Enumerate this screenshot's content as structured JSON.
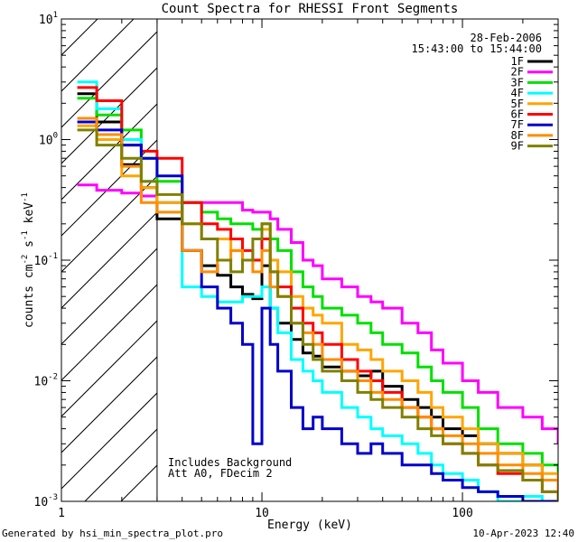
{
  "chart_data": {
    "type": "line",
    "title": "Count Spectra for RHESSI Front Segments",
    "xlabel": "Energy (keV)",
    "ylabel": "counts cm-2 s-1 keV-1",
    "xscale": "log",
    "yscale": "log",
    "xlim": [
      1,
      300
    ],
    "ylim": [
      0.001,
      10
    ],
    "x_ticks": [
      {
        "value": 1,
        "label": "1"
      },
      {
        "value": 10,
        "label": "10"
      },
      {
        "value": 100,
        "label": "100"
      }
    ],
    "y_ticks": [
      {
        "value": 0.001,
        "base": "10",
        "exp": "-3"
      },
      {
        "value": 0.01,
        "base": "10",
        "exp": "-2"
      },
      {
        "value": 0.1,
        "base": "10",
        "exp": "-1"
      },
      {
        "value": 1,
        "base": "10",
        "exp": "0"
      },
      {
        "value": 10,
        "base": "10",
        "exp": "1"
      }
    ],
    "shaded_region": {
      "from": 1,
      "to": 3
    },
    "date": "28-Feb-2006",
    "time_range": "15:43:00 to 15:44:00",
    "annotations": [
      "Includes Background",
      "Att A0, FDecim 2"
    ],
    "series": [
      {
        "name": "1F",
        "color": "#000000",
        "x": [
          1.2,
          1.5,
          2,
          2.5,
          3,
          4,
          5,
          6,
          7,
          8,
          9,
          10,
          11,
          12,
          14,
          16,
          18,
          20,
          25,
          30,
          35,
          40,
          50,
          60,
          70,
          80,
          100,
          120,
          150,
          200,
          250,
          300
        ],
        "y": [
          2.4,
          1.4,
          0.62,
          0.4,
          0.22,
          0.12,
          0.09,
          0.075,
          0.06,
          0.052,
          0.048,
          0.09,
          0.04,
          0.03,
          0.022,
          0.017,
          0.016,
          0.013,
          0.012,
          0.011,
          0.012,
          0.009,
          0.007,
          0.006,
          0.005,
          0.004,
          0.0035,
          0.003,
          0.0025,
          0.002,
          0.0015,
          0.0012
        ]
      },
      {
        "name": "2F",
        "color": "#ff00ff",
        "x": [
          1.2,
          1.5,
          2,
          2.5,
          3,
          4,
          5,
          6,
          7,
          8,
          9,
          10,
          11,
          12,
          14,
          16,
          18,
          20,
          25,
          30,
          35,
          40,
          50,
          60,
          70,
          80,
          100,
          120,
          150,
          200,
          250,
          300
        ],
        "y": [
          0.42,
          0.38,
          0.36,
          0.34,
          0.3,
          0.3,
          0.3,
          0.3,
          0.3,
          0.26,
          0.25,
          0.25,
          0.22,
          0.18,
          0.14,
          0.1,
          0.09,
          0.07,
          0.06,
          0.05,
          0.045,
          0.04,
          0.03,
          0.025,
          0.018,
          0.014,
          0.01,
          0.008,
          0.006,
          0.005,
          0.004,
          0.003
        ]
      },
      {
        "name": "3F",
        "color": "#00e000",
        "x": [
          1.2,
          1.5,
          2,
          2.5,
          3,
          4,
          5,
          6,
          7,
          8,
          9,
          10,
          11,
          12,
          14,
          16,
          18,
          20,
          25,
          30,
          35,
          40,
          50,
          60,
          70,
          80,
          100,
          120,
          150,
          200,
          250,
          300
        ],
        "y": [
          2.2,
          1.6,
          1.2,
          0.7,
          0.45,
          0.3,
          0.25,
          0.22,
          0.2,
          0.2,
          0.18,
          0.2,
          0.15,
          0.12,
          0.08,
          0.06,
          0.05,
          0.04,
          0.035,
          0.03,
          0.025,
          0.02,
          0.017,
          0.013,
          0.01,
          0.008,
          0.006,
          0.004,
          0.003,
          0.0025,
          0.002,
          0.0015
        ]
      },
      {
        "name": "4F",
        "color": "#00ffff",
        "x": [
          1.2,
          1.5,
          2,
          2.5,
          3,
          4,
          5,
          6,
          7,
          8,
          9,
          10,
          11,
          12,
          14,
          16,
          18,
          20,
          25,
          30,
          35,
          40,
          50,
          60,
          70,
          80,
          100,
          120,
          150,
          200,
          250,
          300
        ],
        "y": [
          3.0,
          1.8,
          1.0,
          0.45,
          0.3,
          0.06,
          0.05,
          0.045,
          0.045,
          0.05,
          0.05,
          0.06,
          0.04,
          0.025,
          0.015,
          0.012,
          0.01,
          0.008,
          0.006,
          0.005,
          0.004,
          0.0035,
          0.003,
          0.0025,
          0.002,
          0.0017,
          0.0015,
          0.0012,
          0.001,
          0.0011,
          0.001,
          0.001
        ]
      },
      {
        "name": "5F",
        "color": "#ffa500",
        "x": [
          1.2,
          1.5,
          2,
          2.5,
          3,
          4,
          5,
          6,
          7,
          8,
          9,
          10,
          11,
          12,
          14,
          16,
          18,
          20,
          25,
          30,
          35,
          40,
          50,
          60,
          70,
          80,
          100,
          120,
          150,
          200,
          250,
          300
        ],
        "y": [
          1.3,
          1.0,
          0.5,
          0.4,
          0.3,
          0.2,
          0.15,
          0.15,
          0.12,
          0.1,
          0.1,
          0.18,
          0.1,
          0.08,
          0.05,
          0.04,
          0.035,
          0.03,
          0.02,
          0.018,
          0.015,
          0.012,
          0.01,
          0.008,
          0.006,
          0.005,
          0.004,
          0.003,
          0.0025,
          0.002,
          0.0017,
          0.0015
        ]
      },
      {
        "name": "6F",
        "color": "#ff0000",
        "x": [
          1.2,
          1.5,
          2,
          2.5,
          3,
          4,
          5,
          6,
          7,
          8,
          9,
          10,
          11,
          12,
          14,
          16,
          18,
          20,
          25,
          30,
          35,
          40,
          50,
          60,
          70,
          80,
          100,
          120,
          150,
          200,
          250,
          300
        ],
        "y": [
          2.7,
          2.1,
          0.9,
          0.8,
          0.7,
          0.3,
          0.2,
          0.18,
          0.15,
          0.12,
          0.1,
          0.15,
          0.08,
          0.06,
          0.04,
          0.03,
          0.025,
          0.02,
          0.015,
          0.012,
          0.01,
          0.008,
          0.006,
          0.005,
          0.004,
          0.003,
          0.0025,
          0.002,
          0.0017,
          0.0015,
          0.0012,
          0.001
        ]
      },
      {
        "name": "7F",
        "color": "#0000cc",
        "x": [
          1.2,
          1.5,
          2,
          2.5,
          3,
          4,
          5,
          6,
          7,
          8,
          9,
          10,
          11,
          12,
          14,
          16,
          18,
          20,
          25,
          30,
          35,
          40,
          50,
          60,
          70,
          80,
          100,
          120,
          150,
          200,
          250,
          300
        ],
        "y": [
          1.4,
          1.2,
          0.9,
          0.7,
          0.5,
          0.12,
          0.06,
          0.04,
          0.03,
          0.02,
          0.003,
          0.04,
          0.02,
          0.012,
          0.006,
          0.004,
          0.005,
          0.004,
          0.003,
          0.0025,
          0.003,
          0.0025,
          0.002,
          0.002,
          0.0017,
          0.0015,
          0.0013,
          0.0012,
          0.0011,
          0.001,
          0.001,
          0.001
        ]
      },
      {
        "name": "8F",
        "color": "#ff8c00",
        "x": [
          1.2,
          1.5,
          2,
          2.5,
          3,
          4,
          5,
          6,
          7,
          8,
          9,
          10,
          11,
          12,
          14,
          16,
          18,
          20,
          25,
          30,
          35,
          40,
          50,
          60,
          70,
          80,
          100,
          120,
          150,
          200,
          250,
          300
        ],
        "y": [
          1.5,
          1.1,
          0.6,
          0.3,
          0.25,
          0.12,
          0.08,
          0.1,
          0.12,
          0.1,
          0.08,
          0.12,
          0.06,
          0.05,
          0.03,
          0.025,
          0.02,
          0.015,
          0.012,
          0.01,
          0.008,
          0.007,
          0.006,
          0.005,
          0.004,
          0.0035,
          0.003,
          0.0025,
          0.002,
          0.0017,
          0.0015,
          0.0012
        ]
      },
      {
        "name": "9F",
        "color": "#808000",
        "x": [
          1.2,
          1.5,
          2,
          2.5,
          3,
          4,
          5,
          6,
          7,
          8,
          9,
          10,
          11,
          12,
          14,
          16,
          18,
          20,
          25,
          30,
          35,
          40,
          50,
          60,
          70,
          80,
          100,
          120,
          150,
          200,
          250,
          300
        ],
        "y": [
          1.2,
          0.9,
          0.7,
          0.45,
          0.35,
          0.2,
          0.15,
          0.1,
          0.08,
          0.1,
          0.15,
          0.2,
          0.08,
          0.05,
          0.03,
          0.02,
          0.015,
          0.012,
          0.01,
          0.008,
          0.007,
          0.006,
          0.005,
          0.004,
          0.0035,
          0.003,
          0.0025,
          0.002,
          0.0018,
          0.0015,
          0.0012,
          0.001
        ]
      }
    ]
  },
  "footer": {
    "generated_by": "Generated by hsi_min_spectra_plot.pro",
    "timestamp": "10-Apr-2023 12:40"
  }
}
